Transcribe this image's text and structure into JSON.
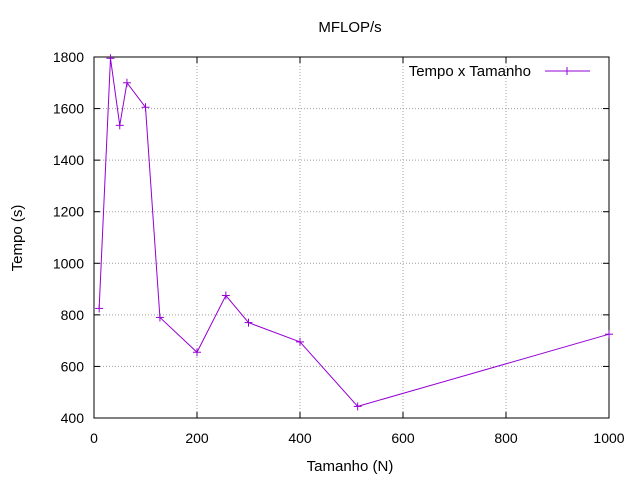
{
  "chart_data": {
    "type": "line",
    "title": "MFLOP/s",
    "xlabel": "Tamanho (N)",
    "ylabel": "Tempo (s)",
    "xlim": [
      0,
      1000
    ],
    "ylim": [
      400,
      1800
    ],
    "xticks": [
      0,
      200,
      400,
      600,
      800,
      1000
    ],
    "yticks": [
      400,
      600,
      800,
      1000,
      1200,
      1400,
      1600,
      1800
    ],
    "grid": true,
    "legend_position": "top-right",
    "series": [
      {
        "name": "Tempo x Tamanho",
        "color": "#9400d3",
        "marker": "plus",
        "x": [
          10,
          32,
          50,
          64,
          100,
          128,
          200,
          256,
          300,
          400,
          512,
          1000
        ],
        "y": [
          825,
          1795,
          1535,
          1700,
          1605,
          790,
          655,
          875,
          770,
          695,
          445,
          725
        ]
      }
    ]
  }
}
